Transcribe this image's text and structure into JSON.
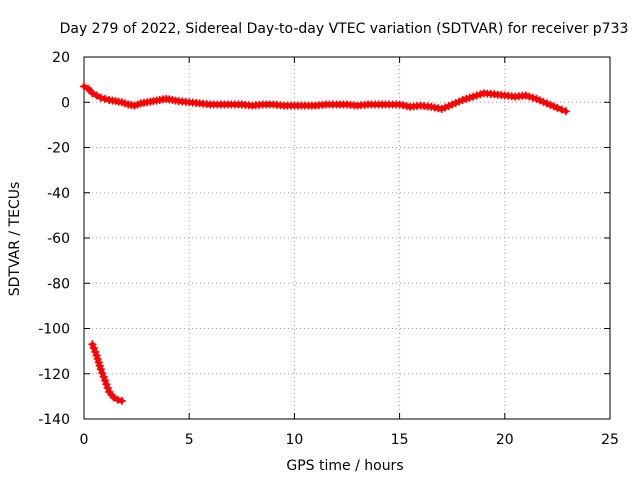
{
  "chart_data": {
    "type": "scatter",
    "title": "Day 279 of 2022, Sidereal Day-to-day VTEC variation (SDTVAR) for receiver p733",
    "xlabel": "GPS time / hours",
    "ylabel": "SDTVAR / TECUs",
    "xlim": [
      0,
      25
    ],
    "ylim": [
      -140,
      20
    ],
    "grid": true,
    "x_ticks": [
      0,
      5,
      10,
      15,
      20,
      25
    ],
    "y_ticks": [
      20,
      0,
      -20,
      -40,
      -60,
      -80,
      -100,
      -120,
      -140
    ],
    "marker": "plus",
    "color": "#ff0000",
    "series": [
      {
        "name": "main",
        "x": [
          0.0,
          0.2,
          0.4,
          0.6,
          0.8,
          1.0,
          1.2,
          1.5,
          1.8,
          2.1,
          2.4,
          2.7,
          3.0,
          3.3,
          3.6,
          3.9,
          4.2,
          4.5,
          5.0,
          5.5,
          6.0,
          6.5,
          7.0,
          7.5,
          8.0,
          8.5,
          9.0,
          9.5,
          10.0,
          10.5,
          11.0,
          11.5,
          12.0,
          12.5,
          13.0,
          13.5,
          14.0,
          14.5,
          15.0,
          15.5,
          16.0,
          16.5,
          17.0,
          17.5,
          18.0,
          18.5,
          19.0,
          19.5,
          20.0,
          20.5,
          21.0,
          21.5,
          22.0,
          22.5,
          22.9
        ],
        "y": [
          7,
          6,
          4,
          3,
          2,
          1.5,
          1,
          0.5,
          0,
          -1,
          -1.5,
          -0.5,
          0,
          0.5,
          1,
          1.5,
          1,
          0.5,
          0,
          -0.5,
          -1,
          -1,
          -1,
          -1,
          -1.5,
          -1,
          -1,
          -1.5,
          -1.5,
          -1.5,
          -1.5,
          -1,
          -1,
          -1,
          -1.5,
          -1,
          -1,
          -1,
          -1,
          -2,
          -1.5,
          -2,
          -3,
          -1,
          1,
          2.5,
          4,
          3.5,
          3,
          2.5,
          3,
          1.5,
          -0.5,
          -2.5,
          -4
        ]
      },
      {
        "name": "early",
        "x": [
          0.4,
          0.6,
          0.8,
          1.0,
          1.2,
          1.4,
          1.6,
          1.8
        ],
        "y": [
          -107,
          -112,
          -118,
          -123,
          -128,
          -130.5,
          -131.5,
          -132
        ]
      }
    ]
  }
}
